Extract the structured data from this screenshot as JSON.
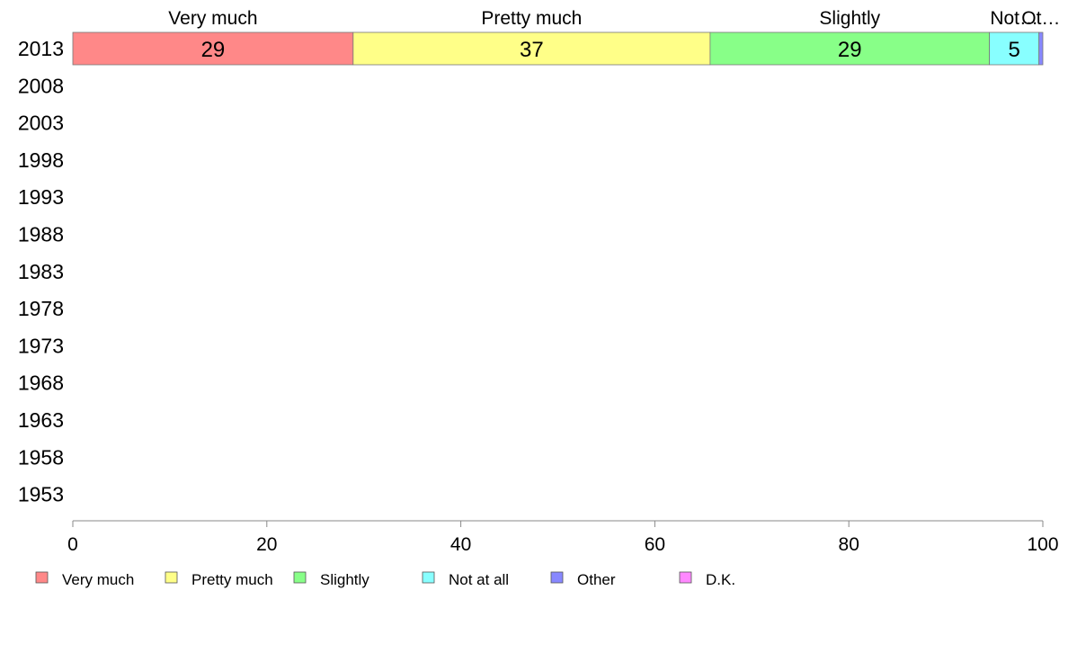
{
  "chart_data": {
    "type": "bar",
    "orientation": "horizontal",
    "stacked": true,
    "categories": [
      "2013",
      "2008",
      "2003",
      "1998",
      "1993",
      "1988",
      "1983",
      "1978",
      "1973",
      "1968",
      "1963",
      "1958",
      "1953"
    ],
    "series": [
      {
        "name": "Very much",
        "color": "#ff8888",
        "values": [
          28.9,
          null,
          null,
          null,
          null,
          null,
          null,
          null,
          null,
          null,
          null,
          null,
          null
        ]
      },
      {
        "name": "Pretty much",
        "color": "#ffff88",
        "values": [
          36.8,
          null,
          null,
          null,
          null,
          null,
          null,
          null,
          null,
          null,
          null,
          null,
          null
        ]
      },
      {
        "name": "Slightly",
        "color": "#88ff88",
        "values": [
          28.8,
          null,
          null,
          null,
          null,
          null,
          null,
          null,
          null,
          null,
          null,
          null,
          null
        ]
      },
      {
        "name": "Not at all",
        "color": "#88ffff",
        "values": [
          5.1,
          null,
          null,
          null,
          null,
          null,
          null,
          null,
          null,
          null,
          null,
          null,
          null
        ]
      },
      {
        "name": "Other",
        "color": "#8888ff",
        "values": [
          0.4,
          null,
          null,
          null,
          null,
          null,
          null,
          null,
          null,
          null,
          null,
          null,
          null
        ]
      },
      {
        "name": "D.K.",
        "color": "#ff88ff",
        "values": [
          0.0,
          null,
          null,
          null,
          null,
          null,
          null,
          null,
          null,
          null,
          null,
          null,
          null
        ]
      }
    ],
    "data_labels": {
      "2013": [
        "29",
        "37",
        "29",
        "5",
        "",
        ""
      ]
    },
    "top_labels": [
      "Very much",
      "Pretty much",
      "Slightly",
      "Not…",
      "Ot…",
      ""
    ],
    "xlim": [
      0,
      100
    ],
    "xticks": [
      "0",
      "20",
      "40",
      "60",
      "80",
      "100"
    ],
    "legend_position": "bottom",
    "grid": false
  }
}
